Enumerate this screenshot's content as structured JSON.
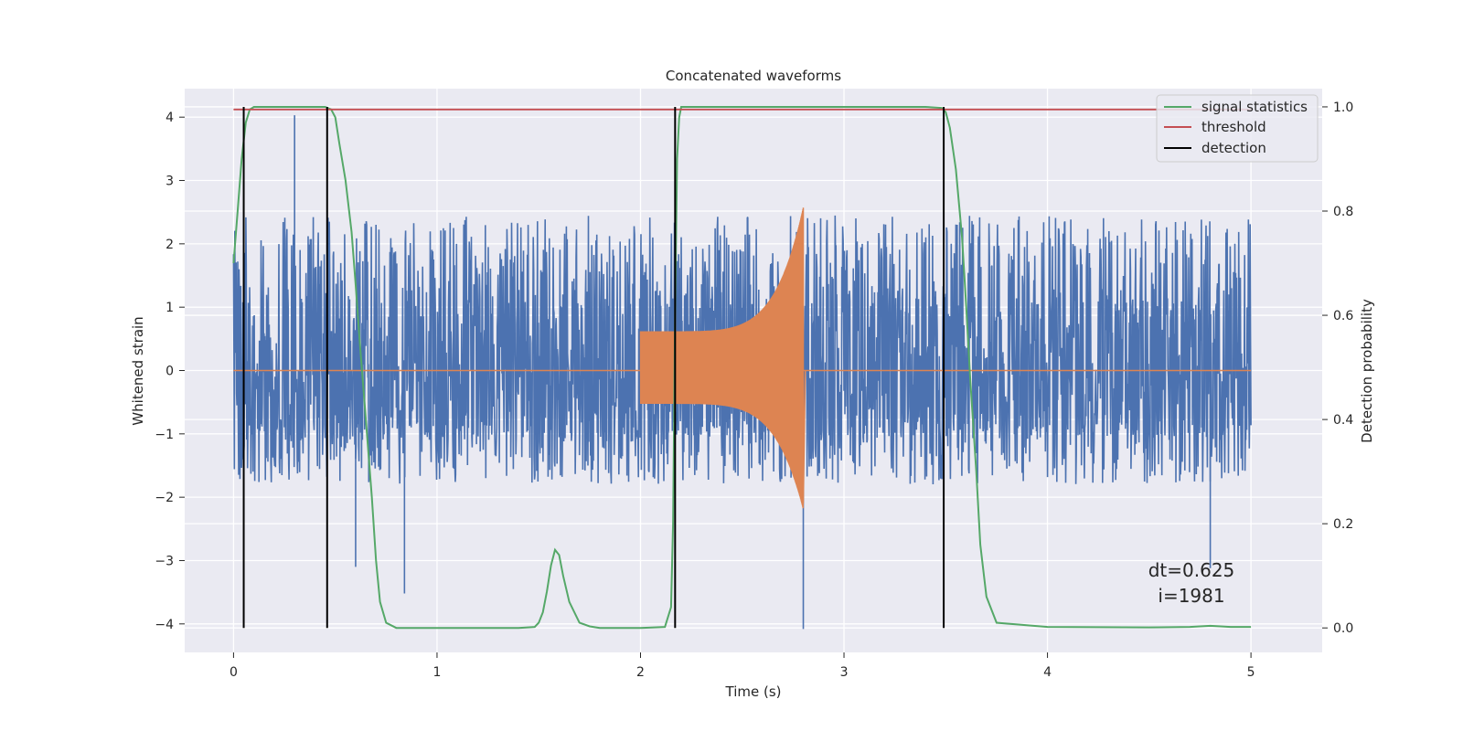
{
  "chart_data": {
    "type": "line",
    "title": "Concatenated waveforms",
    "xlabel": "Time (s)",
    "ylabel": "Whitened strain",
    "y2label": "Detection probability",
    "xlim": [
      -0.24,
      5.35
    ],
    "ylim": [
      -4.45,
      4.45
    ],
    "y2lim": [
      -0.047,
      1.035
    ],
    "xticks": [
      0,
      1,
      2,
      3,
      4,
      5
    ],
    "yticks": [
      -4,
      -3,
      -2,
      -1,
      0,
      1,
      2,
      3,
      4
    ],
    "y2ticks": [
      0.0,
      0.2,
      0.4,
      0.6,
      0.8,
      1.0
    ],
    "grid": true,
    "legend_position": "top-right",
    "legend": [
      "signal statistics",
      "threshold",
      "detection"
    ],
    "annotation": [
      "dt=0.625",
      "i=1981"
    ],
    "colors": {
      "strain": "#4c72b0",
      "template": "#dd8452",
      "signal_statistics": "#55a868",
      "threshold": "#c44e52",
      "detection": "#000000",
      "background": "#eaeaf2",
      "grid": "#ffffff"
    },
    "series": [
      {
        "name": "",
        "role": "whitened strain (noise, amplitude envelope)",
        "axis": "left",
        "x_range": [
          0,
          5
        ],
        "typical_range": [
          -1.8,
          2.4
        ],
        "peaks": [
          {
            "x": 0.3,
            "y": 4.03
          },
          {
            "x": 0.84,
            "y": -3.52
          },
          {
            "x": 2.8,
            "y": -4.08
          },
          {
            "x": 4.8,
            "y": -3.12
          },
          {
            "x": 0.6,
            "y": -3.1
          }
        ]
      },
      {
        "name": "",
        "role": "chirp template",
        "axis": "left",
        "x_range": [
          2.0,
          2.81
        ],
        "start_amplitude": 0.62,
        "peak_amplitude": 2.57,
        "min_value": -2.1,
        "merger_time": 2.8
      },
      {
        "name": "signal statistics",
        "axis": "right",
        "x": [
          0,
          0.02,
          0.04,
          0.06,
          0.08,
          0.1,
          0.15,
          0.3,
          0.45,
          0.48,
          0.5,
          0.52,
          0.55,
          0.58,
          0.6,
          0.62,
          0.65,
          0.68,
          0.7,
          0.72,
          0.75,
          0.8,
          1.0,
          1.4,
          1.48,
          1.5,
          1.52,
          1.54,
          1.56,
          1.58,
          1.6,
          1.62,
          1.65,
          1.7,
          1.75,
          1.8,
          2.0,
          2.12,
          2.15,
          2.16,
          2.17,
          2.18,
          2.19,
          2.2,
          2.25,
          3.4,
          3.48,
          3.5,
          3.52,
          3.55,
          3.58,
          3.6,
          3.62,
          3.65,
          3.67,
          3.7,
          3.75,
          4.0,
          4.5,
          4.7,
          4.8,
          4.9,
          5.0
        ],
        "y": [
          0.7,
          0.8,
          0.9,
          0.97,
          0.995,
          1.0,
          1.0,
          1.0,
          1.0,
          0.995,
          0.98,
          0.93,
          0.86,
          0.76,
          0.66,
          0.55,
          0.4,
          0.25,
          0.13,
          0.05,
          0.01,
          0.0,
          0.0,
          0.0,
          0.002,
          0.01,
          0.03,
          0.07,
          0.12,
          0.15,
          0.14,
          0.1,
          0.05,
          0.01,
          0.003,
          0.0,
          0.0,
          0.002,
          0.04,
          0.2,
          0.6,
          0.9,
          0.98,
          1.0,
          1.0,
          1.0,
          0.998,
          0.99,
          0.96,
          0.88,
          0.75,
          0.62,
          0.48,
          0.3,
          0.16,
          0.06,
          0.01,
          0.002,
          0.001,
          0.002,
          0.004,
          0.002,
          0.002
        ]
      },
      {
        "name": "threshold",
        "axis": "right",
        "x": [
          0,
          5
        ],
        "y": [
          0.995,
          0.995
        ]
      },
      {
        "name": "detection",
        "axis": "right",
        "type": "vlines",
        "x": [
          0.05,
          0.46,
          2.17,
          3.49
        ],
        "y_range": [
          0.0,
          1.0
        ]
      }
    ]
  }
}
